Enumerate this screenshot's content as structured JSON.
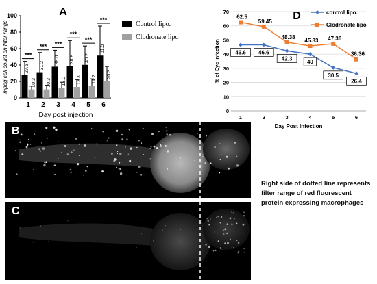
{
  "chart_data": [
    {
      "type": "bar",
      "panel_label": "A",
      "categories": [
        "1",
        "2",
        "3",
        "4",
        "5",
        "6"
      ],
      "xlabel": "Day post injection",
      "ylabel": "mpeg cell count on filter range",
      "ylim": [
        0,
        100
      ],
      "yticks": [
        0,
        20,
        40,
        60,
        80,
        100
      ],
      "series": [
        {
          "name": "Control lipo.",
          "color": "#000000",
          "values": [
            27.5,
            31.2,
            38.0,
            38.8,
            40.2,
            51.5
          ],
          "labels": [
            "27.5",
            "31.2",
            "38.0",
            "38.8",
            "40.2",
            "51.5"
          ],
          "error": [
            17,
            24,
            20,
            31,
            23,
            36
          ]
        },
        {
          "name": "Clodronate lipo",
          "color": "#a0a0a0",
          "values": [
            10.3,
            10.3,
            12.0,
            13.3,
            14.2,
            20.3
          ],
          "labels": [
            "10.3",
            "10.3",
            "12.0",
            "13.3",
            "14.2",
            "20.3"
          ],
          "error": [
            4,
            5,
            7,
            9,
            9,
            18
          ]
        }
      ],
      "significance": [
        "***",
        "***",
        "***",
        "***",
        "***",
        "***"
      ],
      "legend_position": "right"
    },
    {
      "type": "line",
      "panel_label": "D",
      "x": [
        1,
        2,
        3,
        4,
        5,
        6
      ],
      "xlabel": "Day Post Infection",
      "ylabel": "% of Eye Infection",
      "ylim": [
        0,
        70
      ],
      "yticks": [
        0,
        10,
        20,
        30,
        40,
        50,
        60,
        70
      ],
      "grid": true,
      "series": [
        {
          "name": "control lipo.",
          "color": "#4472c4",
          "values": [
            46.6,
            46.6,
            42.3,
            40,
            30.5,
            26.4
          ],
          "labels": [
            "46.6",
            "46.6",
            "42.3",
            "40",
            "30.5",
            "26.4"
          ]
        },
        {
          "name": "Clodronate lipo",
          "color": "#ed7d31",
          "values": [
            62.5,
            59.45,
            48.38,
            45.83,
            47.36,
            36.36
          ],
          "labels": [
            "62.5",
            "59.45",
            "48.38",
            "45.83",
            "47.36",
            "36.36"
          ]
        }
      ],
      "legend_position": "top-right"
    }
  ],
  "images": {
    "panel_b_label": "B",
    "panel_c_label": "C"
  },
  "caption": "Right side of dotted line represents filter range of red fluorescent protein expressing macrophages"
}
